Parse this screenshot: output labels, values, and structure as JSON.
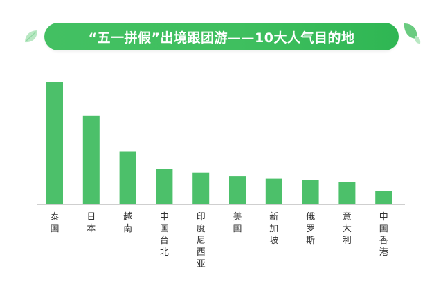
{
  "header": {
    "title": "“五一拼假”出境跟团游——10大人气目的地"
  },
  "colors": {
    "accent": "#3fbf5f",
    "bar": "#4cc06a",
    "axis": "#cfcfcf",
    "leaf_light": "#b9e8c3",
    "leaf_dark": "#6acb80"
  },
  "icons": [
    "leaf-icon-left",
    "leaf-icon-right"
  ],
  "chart_data": {
    "type": "bar",
    "title": "“五一拼假”出境跟团游——10大人气目的地",
    "categories": [
      "泰国",
      "日本",
      "越南",
      "中国台北",
      "印度尼西亚",
      "美国",
      "新加坡",
      "俄罗斯",
      "意大利",
      "中国香港"
    ],
    "values": [
      100,
      72,
      43,
      29,
      26,
      23,
      21,
      20,
      18,
      11
    ],
    "ylim": [
      0,
      100
    ],
    "grid": false,
    "xlabel": "",
    "ylabel": ""
  }
}
